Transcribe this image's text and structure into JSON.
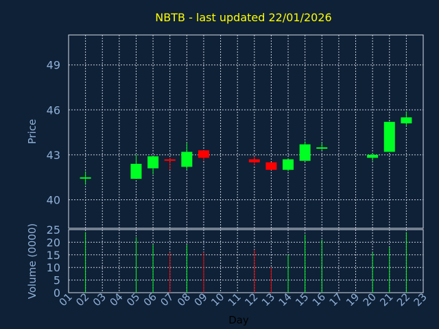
{
  "colors": {
    "background": "#0f2137",
    "grid": "#c8d0dc",
    "frame": "#d8dee8",
    "up": "#00ff22",
    "down": "#ff0000",
    "title": "#ffff00",
    "tick_text": "#8fb0d8"
  },
  "chart_data": {
    "type": "candlestick",
    "title": "NBTB - last updated 22/01/2026",
    "xlabel": "Day",
    "ylabel": "Price",
    "volume_label": "Volume (0000)",
    "x_ticks": [
      "01",
      "02",
      "03",
      "04",
      "05",
      "06",
      "07",
      "08",
      "09",
      "10",
      "11",
      "12",
      "13",
      "14",
      "15",
      "16",
      "17",
      "19",
      "20",
      "21",
      "22",
      "23"
    ],
    "price_ticks": [
      40,
      43,
      46,
      49
    ],
    "price_ylim": [
      38.1,
      51.0
    ],
    "volume_ticks": [
      0,
      5,
      10,
      15,
      20,
      25
    ],
    "volume_ylim": [
      0,
      25
    ],
    "grid": true,
    "candles": [
      {
        "day": "02",
        "open": 41.5,
        "close": 41.5,
        "high": 41.9,
        "low": 41.0,
        "volume": 24,
        "dir": "up"
      },
      {
        "day": "05",
        "open": 41.4,
        "close": 42.4,
        "high": 43.0,
        "low": 41.4,
        "volume": 22,
        "dir": "up"
      },
      {
        "day": "06",
        "open": 42.1,
        "close": 42.9,
        "high": 42.9,
        "low": 41.7,
        "volume": 19,
        "dir": "up"
      },
      {
        "day": "07",
        "open": 42.7,
        "close": 42.6,
        "high": 42.8,
        "low": 42.0,
        "volume": 16,
        "dir": "down"
      },
      {
        "day": "08",
        "open": 42.2,
        "close": 43.2,
        "high": 43.8,
        "low": 42.0,
        "volume": 19,
        "dir": "up"
      },
      {
        "day": "09",
        "open": 43.3,
        "close": 42.8,
        "high": 43.3,
        "low": 42.6,
        "volume": 16,
        "dir": "down"
      },
      {
        "day": "12",
        "open": 42.7,
        "close": 42.5,
        "high": 42.9,
        "low": 42.3,
        "volume": 17,
        "dir": "down"
      },
      {
        "day": "13",
        "open": 42.5,
        "close": 42.0,
        "high": 42.5,
        "low": 42.0,
        "volume": 10,
        "dir": "down"
      },
      {
        "day": "14",
        "open": 42.0,
        "close": 42.7,
        "high": 42.7,
        "low": 41.9,
        "volume": 15,
        "dir": "up"
      },
      {
        "day": "15",
        "open": 42.6,
        "close": 43.7,
        "high": 43.9,
        "low": 42.6,
        "volume": 23,
        "dir": "up"
      },
      {
        "day": "16",
        "open": 43.5,
        "close": 43.5,
        "high": 43.8,
        "low": 43.3,
        "volume": 21,
        "dir": "up"
      },
      {
        "day": "20",
        "open": 42.8,
        "close": 43.0,
        "high": 43.1,
        "low": 42.6,
        "volume": 16,
        "dir": "up"
      },
      {
        "day": "21",
        "open": 43.2,
        "close": 45.2,
        "high": 45.2,
        "low": 43.2,
        "volume": 18,
        "dir": "up"
      },
      {
        "day": "22",
        "open": 45.1,
        "close": 45.5,
        "high": 45.9,
        "low": 44.9,
        "volume": 24,
        "dir": "up"
      }
    ]
  }
}
